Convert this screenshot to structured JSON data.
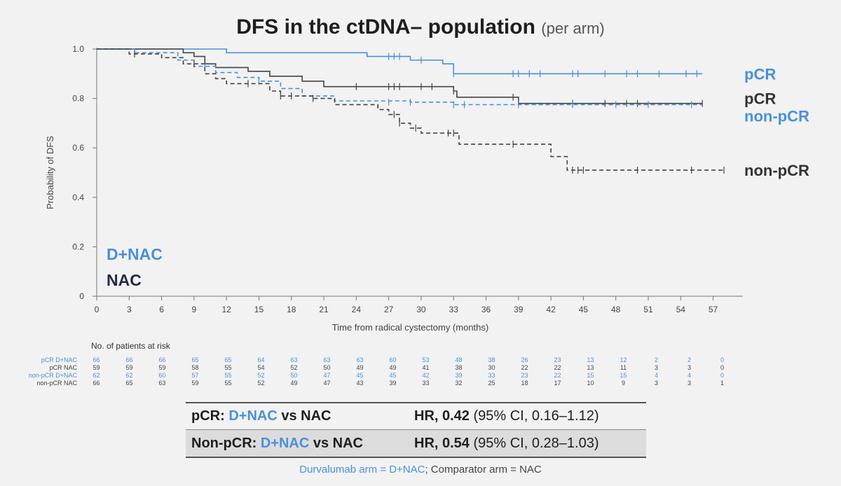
{
  "title": "DFS in the ctDNA– population",
  "subtitle": "(per arm)",
  "chart_data": {
    "type": "line",
    "title": "DFS in the ctDNA– population",
    "xlabel": "Time from radical cystectomy (months)",
    "ylabel": "Probability of DFS",
    "xlim": [
      0,
      58
    ],
    "ylim": [
      0,
      1.0
    ],
    "xticks": [
      0,
      3,
      6,
      9,
      12,
      15,
      18,
      21,
      24,
      27,
      30,
      33,
      36,
      39,
      42,
      45,
      48,
      51,
      54,
      57
    ],
    "yticks": [
      0,
      0.2,
      0.4,
      0.6,
      0.8,
      1.0
    ],
    "ytick_labels": [
      "0",
      "0.2",
      "0.4",
      "0.6",
      "0.8",
      "1.0"
    ],
    "grid": false,
    "series": [
      {
        "name": "pCR D+NAC",
        "color": "#4a90d9",
        "style": "solid",
        "steps": [
          [
            0,
            1.0
          ],
          [
            12,
            0.985
          ],
          [
            25,
            0.97
          ],
          [
            29,
            0.955
          ],
          [
            32,
            0.94
          ],
          [
            33,
            0.9
          ],
          [
            56,
            0.9
          ]
        ],
        "censors": [
          [
            27,
            0.97
          ],
          [
            27.5,
            0.97
          ],
          [
            28,
            0.97
          ],
          [
            30,
            0.955
          ],
          [
            33,
            0.9
          ],
          [
            38.5,
            0.9
          ],
          [
            39,
            0.9
          ],
          [
            40,
            0.9
          ],
          [
            41,
            0.9
          ],
          [
            44,
            0.9
          ],
          [
            44.5,
            0.9
          ],
          [
            47,
            0.9
          ],
          [
            49,
            0.9
          ],
          [
            50,
            0.9
          ],
          [
            52,
            0.9
          ],
          [
            54.5,
            0.9
          ],
          [
            55.5,
            0.9
          ]
        ]
      },
      {
        "name": "pCR NAC",
        "color": "#444444",
        "style": "solid",
        "steps": [
          [
            0,
            1.0
          ],
          [
            8,
            0.985
          ],
          [
            9,
            0.97
          ],
          [
            10,
            0.94
          ],
          [
            11,
            0.925
          ],
          [
            14,
            0.91
          ],
          [
            16,
            0.89
          ],
          [
            19,
            0.87
          ],
          [
            21,
            0.848
          ],
          [
            33,
            0.83
          ],
          [
            33.3,
            0.805
          ],
          [
            39,
            0.78
          ],
          [
            56,
            0.78
          ]
        ],
        "censors": [
          [
            24,
            0.848
          ],
          [
            27,
            0.848
          ],
          [
            27.5,
            0.848
          ],
          [
            28,
            0.848
          ],
          [
            30,
            0.848
          ],
          [
            31,
            0.848
          ],
          [
            33,
            0.83
          ],
          [
            38.5,
            0.805
          ],
          [
            44,
            0.78
          ],
          [
            47,
            0.78
          ],
          [
            49,
            0.78
          ],
          [
            50,
            0.78
          ],
          [
            56,
            0.78
          ]
        ]
      },
      {
        "name": "non-pCR D+NAC",
        "color": "#4a90d9",
        "style": "dashed",
        "steps": [
          [
            0,
            1.0
          ],
          [
            3.5,
            0.985
          ],
          [
            7.5,
            0.955
          ],
          [
            9,
            0.93
          ],
          [
            11,
            0.905
          ],
          [
            13,
            0.885
          ],
          [
            15,
            0.87
          ],
          [
            17,
            0.84
          ],
          [
            19,
            0.81
          ],
          [
            22,
            0.79
          ],
          [
            29,
            0.785
          ],
          [
            33,
            0.775
          ],
          [
            56,
            0.775
          ]
        ],
        "censors": [
          [
            10,
            0.93
          ],
          [
            15,
            0.87
          ],
          [
            27,
            0.785
          ],
          [
            29,
            0.785
          ],
          [
            33,
            0.775
          ],
          [
            34,
            0.775
          ],
          [
            39,
            0.775
          ],
          [
            44,
            0.775
          ],
          [
            48,
            0.775
          ],
          [
            51,
            0.775
          ],
          [
            55,
            0.775
          ]
        ]
      },
      {
        "name": "non-pCR NAC",
        "color": "#444444",
        "style": "dashed",
        "steps": [
          [
            0,
            1.0
          ],
          [
            3,
            0.98
          ],
          [
            6,
            0.965
          ],
          [
            8,
            0.94
          ],
          [
            10,
            0.9
          ],
          [
            11,
            0.88
          ],
          [
            12,
            0.86
          ],
          [
            16,
            0.83
          ],
          [
            17,
            0.81
          ],
          [
            20,
            0.8
          ],
          [
            22,
            0.775
          ],
          [
            26,
            0.755
          ],
          [
            27,
            0.735
          ],
          [
            28,
            0.7
          ],
          [
            29,
            0.68
          ],
          [
            30,
            0.66
          ],
          [
            33,
            0.66
          ],
          [
            33.5,
            0.615
          ],
          [
            38.5,
            0.615
          ],
          [
            42,
            0.565
          ],
          [
            43.5,
            0.51
          ],
          [
            58,
            0.51
          ]
        ],
        "censors": [
          [
            3.5,
            0.98
          ],
          [
            9,
            0.94
          ],
          [
            14,
            0.86
          ],
          [
            17,
            0.81
          ],
          [
            18,
            0.81
          ],
          [
            20,
            0.8
          ],
          [
            27.5,
            0.735
          ],
          [
            28,
            0.7
          ],
          [
            29.5,
            0.68
          ],
          [
            32.5,
            0.66
          ],
          [
            33,
            0.66
          ],
          [
            38.5,
            0.615
          ],
          [
            44,
            0.51
          ],
          [
            44.5,
            0.51
          ],
          [
            45,
            0.51
          ],
          [
            50,
            0.51
          ],
          [
            55,
            0.51
          ],
          [
            58,
            0.51
          ]
        ]
      }
    ],
    "right_labels": [
      {
        "text": "pCR",
        "color": "#4a90d9",
        "y": 0.9
      },
      {
        "text": "pCR",
        "color": "#333333",
        "y": 0.8
      },
      {
        "text": "non-pCR",
        "color": "#4a90d9",
        "y": 0.73
      },
      {
        "text": "non-pCR",
        "color": "#333333",
        "y": 0.51
      }
    ],
    "inline_legend": [
      {
        "text": "D+NAC",
        "color": "#4a90d9"
      },
      {
        "text": "NAC",
        "color": "#1f2a44"
      }
    ]
  },
  "risk_table": {
    "header": "No. of patients at risk",
    "rows": [
      {
        "label": "pCR D+NAC",
        "color": "blue",
        "values": [
          "66",
          "66",
          "66",
          "65",
          "65",
          "64",
          "63",
          "63",
          "63",
          "60",
          "53",
          "48",
          "38",
          "26",
          "23",
          "13",
          "12",
          "2",
          "2",
          "0"
        ]
      },
      {
        "label": "pCR NAC",
        "color": "grey",
        "values": [
          "59",
          "59",
          "59",
          "58",
          "55",
          "54",
          "52",
          "50",
          "49",
          "49",
          "41",
          "38",
          "30",
          "22",
          "22",
          "13",
          "11",
          "3",
          "3",
          "0"
        ]
      },
      {
        "label": "non-pCR D+NAC",
        "color": "blue",
        "values": [
          "62",
          "62",
          "60",
          "57",
          "55",
          "52",
          "50",
          "47",
          "45",
          "45",
          "42",
          "39",
          "33",
          "23",
          "22",
          "15",
          "15",
          "4",
          "4",
          "0"
        ]
      },
      {
        "label": "non-pCR NAC",
        "color": "grey",
        "values": [
          "66",
          "65",
          "63",
          "59",
          "55",
          "52",
          "49",
          "47",
          "43",
          "39",
          "33",
          "32",
          "25",
          "18",
          "17",
          "10",
          "9",
          "3",
          "3",
          "1"
        ]
      }
    ]
  },
  "hr_rows": [
    {
      "group": "pCR: ",
      "arm": "D+NAC",
      "vs": " vs NAC",
      "hr_label": "HR, 0.42",
      "ci": " (95% CI, 0.16–1.12)"
    },
    {
      "group": "Non-pCR: ",
      "arm": "D+NAC",
      "vs": " vs NAC",
      "hr_label": "HR, 0.54",
      "ci": " (95% CI, 0.28–1.03)"
    }
  ],
  "footnote": {
    "arm": "Durvalumab arm = D+NAC",
    "rest": "; Comparator arm = NAC"
  }
}
